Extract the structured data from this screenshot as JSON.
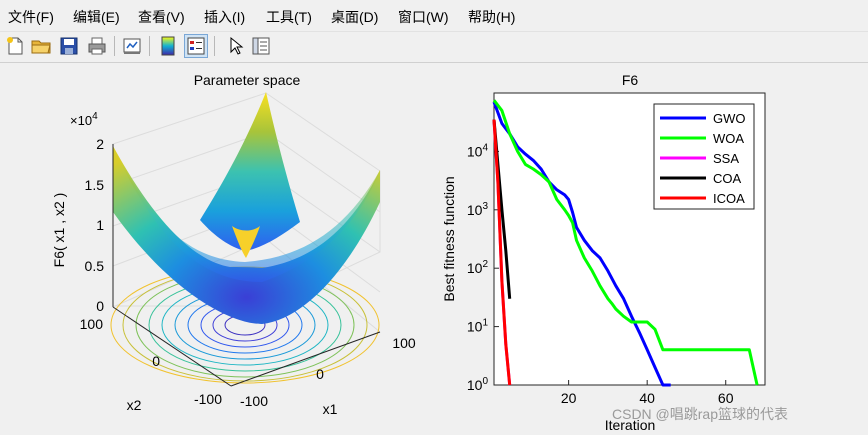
{
  "menubar": {
    "items": [
      {
        "label": "文件(F)"
      },
      {
        "label": "编辑(E)"
      },
      {
        "label": "查看(V)"
      },
      {
        "label": "插入(I)"
      },
      {
        "label": "工具(T)"
      },
      {
        "label": "桌面(D)"
      },
      {
        "label": "窗口(W)"
      },
      {
        "label": "帮助(H)"
      }
    ]
  },
  "toolbar": {
    "buttons": [
      {
        "icon": "new-figure-icon"
      },
      {
        "icon": "open-folder-icon"
      },
      {
        "icon": "save-icon"
      },
      {
        "icon": "print-icon"
      },
      {
        "icon": "link-plot-icon"
      },
      {
        "icon": "colorbar-icon"
      },
      {
        "icon": "legend-icon"
      },
      {
        "icon": "pointer-icon"
      },
      {
        "icon": "property-inspector-icon"
      }
    ]
  },
  "chart_data": [
    {
      "type": "surface",
      "title": "Parameter space",
      "xlabel": "x1",
      "ylabel": "x2",
      "zlabel": "F6( x1 , x2 )",
      "z_multiplier_label": "×10",
      "z_multiplier_exp": "4",
      "xlim": [
        -100,
        100
      ],
      "ylim": [
        -100,
        100
      ],
      "zlim": [
        0,
        20000
      ],
      "ztick_labels": [
        "0",
        "0.5",
        "1",
        "1.5",
        "2"
      ],
      "xtick_labels": [
        "-100",
        "0",
        "100"
      ],
      "ytick_labels": [
        "-100",
        "0",
        "100"
      ],
      "colormap": [
        "#3e26a8",
        "#2f6cf3",
        "#12b1d3",
        "#3fc28a",
        "#a4be3b",
        "#f5c22e",
        "#f9fb15"
      ],
      "contour_levels": 11,
      "grid": true
    },
    {
      "type": "line",
      "title": "F6",
      "xlabel": "Iteration",
      "ylabel": "Best fitness function",
      "yscale": "log",
      "xlim": [
        1,
        70
      ],
      "ylim": [
        1,
        100000
      ],
      "xtick_labels": [
        "20",
        "40",
        "60"
      ],
      "ytick_labels": [
        "10^0",
        "10^1",
        "10^2",
        "10^3",
        "10^4"
      ],
      "legend_position": "top-right",
      "series": [
        {
          "name": "GWO",
          "color": "#0000ff",
          "x": [
            1,
            3,
            5,
            7,
            9,
            11,
            13,
            15,
            17,
            19,
            20,
            21,
            22,
            24,
            26,
            28,
            30,
            32,
            34,
            36,
            38,
            40,
            42,
            44,
            46
          ],
          "y": [
            70000,
            30000,
            20000,
            12000,
            9000,
            7000,
            5000,
            3000,
            2200,
            1800,
            1500,
            900,
            500,
            300,
            200,
            150,
            90,
            50,
            30,
            15,
            8,
            4,
            2,
            1,
            1
          ]
        },
        {
          "name": "WOA",
          "color": "#00ff00",
          "x": [
            1,
            3,
            5,
            7,
            9,
            11,
            13,
            15,
            17,
            19,
            20,
            21,
            22,
            24,
            26,
            28,
            30,
            31,
            32,
            34,
            36,
            38,
            40,
            42,
            44,
            46,
            50,
            55,
            60,
            65,
            66,
            67,
            68
          ],
          "y": [
            75000,
            50000,
            20000,
            10000,
            6000,
            5000,
            4000,
            3000,
            1500,
            1000,
            800,
            600,
            300,
            150,
            90,
            50,
            30,
            25,
            20,
            15,
            12,
            12,
            12,
            9,
            4,
            4,
            4,
            4,
            4,
            4,
            4,
            2,
            1
          ]
        },
        {
          "name": "SSA",
          "color": "#ff00ff",
          "x": [
            1,
            2,
            3,
            4,
            5
          ],
          "y": [
            35000,
            3000,
            60,
            5,
            1
          ]
        },
        {
          "name": "COA",
          "color": "#000000",
          "x": [
            1,
            2,
            3,
            4,
            5
          ],
          "y": [
            35000,
            6000,
            1000,
            200,
            30
          ]
        },
        {
          "name": "ICOA",
          "color": "#ff0000",
          "x": [
            1,
            2,
            3,
            4,
            5
          ],
          "y": [
            35000,
            3000,
            60,
            5,
            1
          ]
        }
      ]
    }
  ],
  "watermark": "CSDN @唱跳rap篮球的代表"
}
